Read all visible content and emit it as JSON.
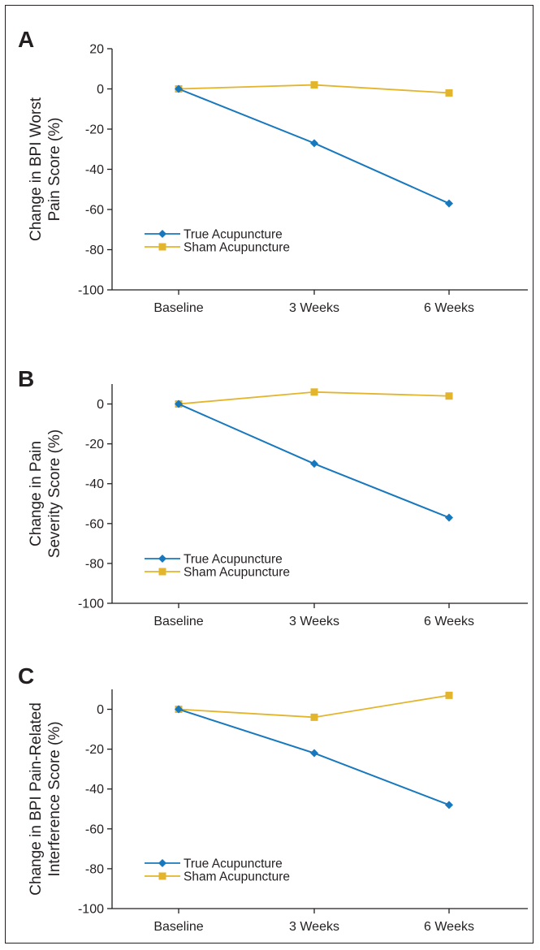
{
  "colors": {
    "true_series": "#1878bd",
    "sham_series": "#e3b52d",
    "axis": "#231f20"
  },
  "chart_data": [
    {
      "panel": "A",
      "type": "line",
      "categories": [
        "Baseline",
        "3 Weeks",
        "6 Weeks"
      ],
      "ylabel_lines": [
        "Change in BPI Worst",
        "Pain Score (%)"
      ],
      "ylim": [
        -100,
        20
      ],
      "yticks": [
        20,
        0,
        -20,
        -40,
        -60,
        -80,
        -100
      ],
      "series": [
        {
          "name": "True Acupuncture",
          "marker": "diamond",
          "values": [
            0,
            -27,
            -57
          ]
        },
        {
          "name": "Sham Acupuncture",
          "marker": "square",
          "values": [
            0,
            2,
            -2
          ]
        }
      ],
      "legend": "lower-left"
    },
    {
      "panel": "B",
      "type": "line",
      "categories": [
        "Baseline",
        "3 Weeks",
        "6 Weeks"
      ],
      "ylabel_lines": [
        "Change in Pain",
        "Severity Score (%)"
      ],
      "ylim": [
        -100,
        10
      ],
      "yticks": [
        0,
        -20,
        -40,
        -60,
        -80,
        -100
      ],
      "series": [
        {
          "name": "True Acupuncture",
          "marker": "diamond",
          "values": [
            0,
            -30,
            -57
          ]
        },
        {
          "name": "Sham Acupuncture",
          "marker": "square",
          "values": [
            0,
            6,
            4
          ]
        }
      ],
      "legend": "lower-left"
    },
    {
      "panel": "C",
      "type": "line",
      "categories": [
        "Baseline",
        "3 Weeks",
        "6 Weeks"
      ],
      "ylabel_lines": [
        "Change in BPI Pain-Related",
        "Interference Score (%)"
      ],
      "ylim": [
        -100,
        10
      ],
      "yticks": [
        0,
        -20,
        -40,
        -60,
        -80,
        -100
      ],
      "series": [
        {
          "name": "True Acupuncture",
          "marker": "diamond",
          "values": [
            0,
            -22,
            -48
          ]
        },
        {
          "name": "Sham Acupuncture",
          "marker": "square",
          "values": [
            0,
            -4,
            7
          ]
        }
      ],
      "legend": "lower-left"
    }
  ]
}
